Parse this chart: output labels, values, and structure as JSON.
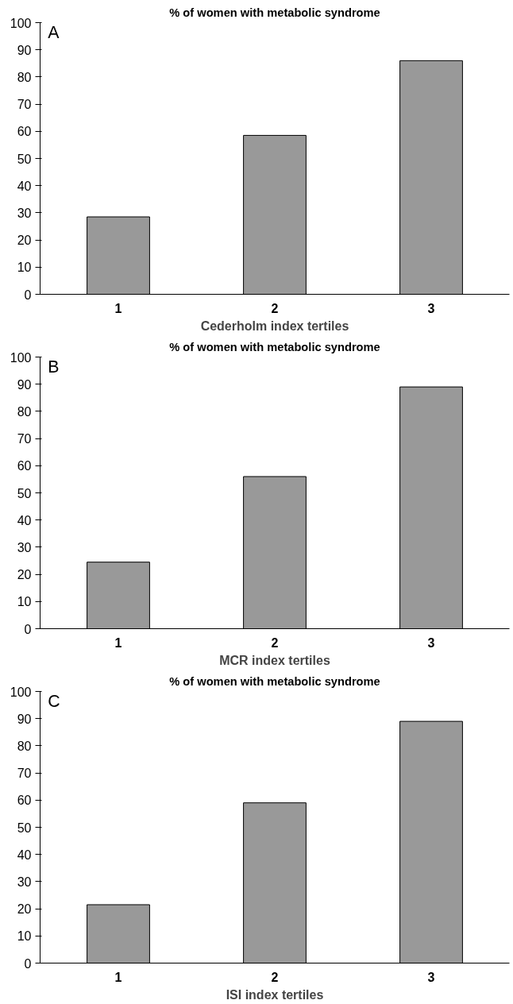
{
  "chart_data": [
    {
      "type": "bar",
      "title": "% of women with metabolic syndrome",
      "xlabel": "Cederholm index tertiles",
      "categories": [
        "1",
        "2",
        "3"
      ],
      "values": [
        28.5,
        58.5,
        86
      ],
      "color": "#999999",
      "ylim": [
        0,
        100
      ],
      "yticks": [
        0,
        10,
        20,
        30,
        40,
        50,
        60,
        70,
        80,
        90,
        100
      ],
      "grid": false,
      "annotations": [
        "A"
      ]
    },
    {
      "type": "bar",
      "title": "% of women with metabolic syndrome",
      "xlabel": "MCR index tertiles",
      "categories": [
        "1",
        "2",
        "3"
      ],
      "values": [
        24.5,
        56,
        89
      ],
      "color": "#999999",
      "ylim": [
        0,
        100
      ],
      "yticks": [
        0,
        10,
        20,
        30,
        40,
        50,
        60,
        70,
        80,
        90,
        100
      ],
      "grid": false,
      "annotations": [
        "B"
      ]
    },
    {
      "type": "bar",
      "title": "% of women with metabolic syndrome",
      "xlabel": "ISI index tertiles",
      "categories": [
        "1",
        "2",
        "3"
      ],
      "values": [
        21.5,
        59,
        89
      ],
      "color": "#999999",
      "ylim": [
        0,
        100
      ],
      "yticks": [
        0,
        10,
        20,
        30,
        40,
        50,
        60,
        70,
        80,
        90,
        100
      ],
      "grid": false,
      "annotations": [
        "C"
      ]
    }
  ]
}
